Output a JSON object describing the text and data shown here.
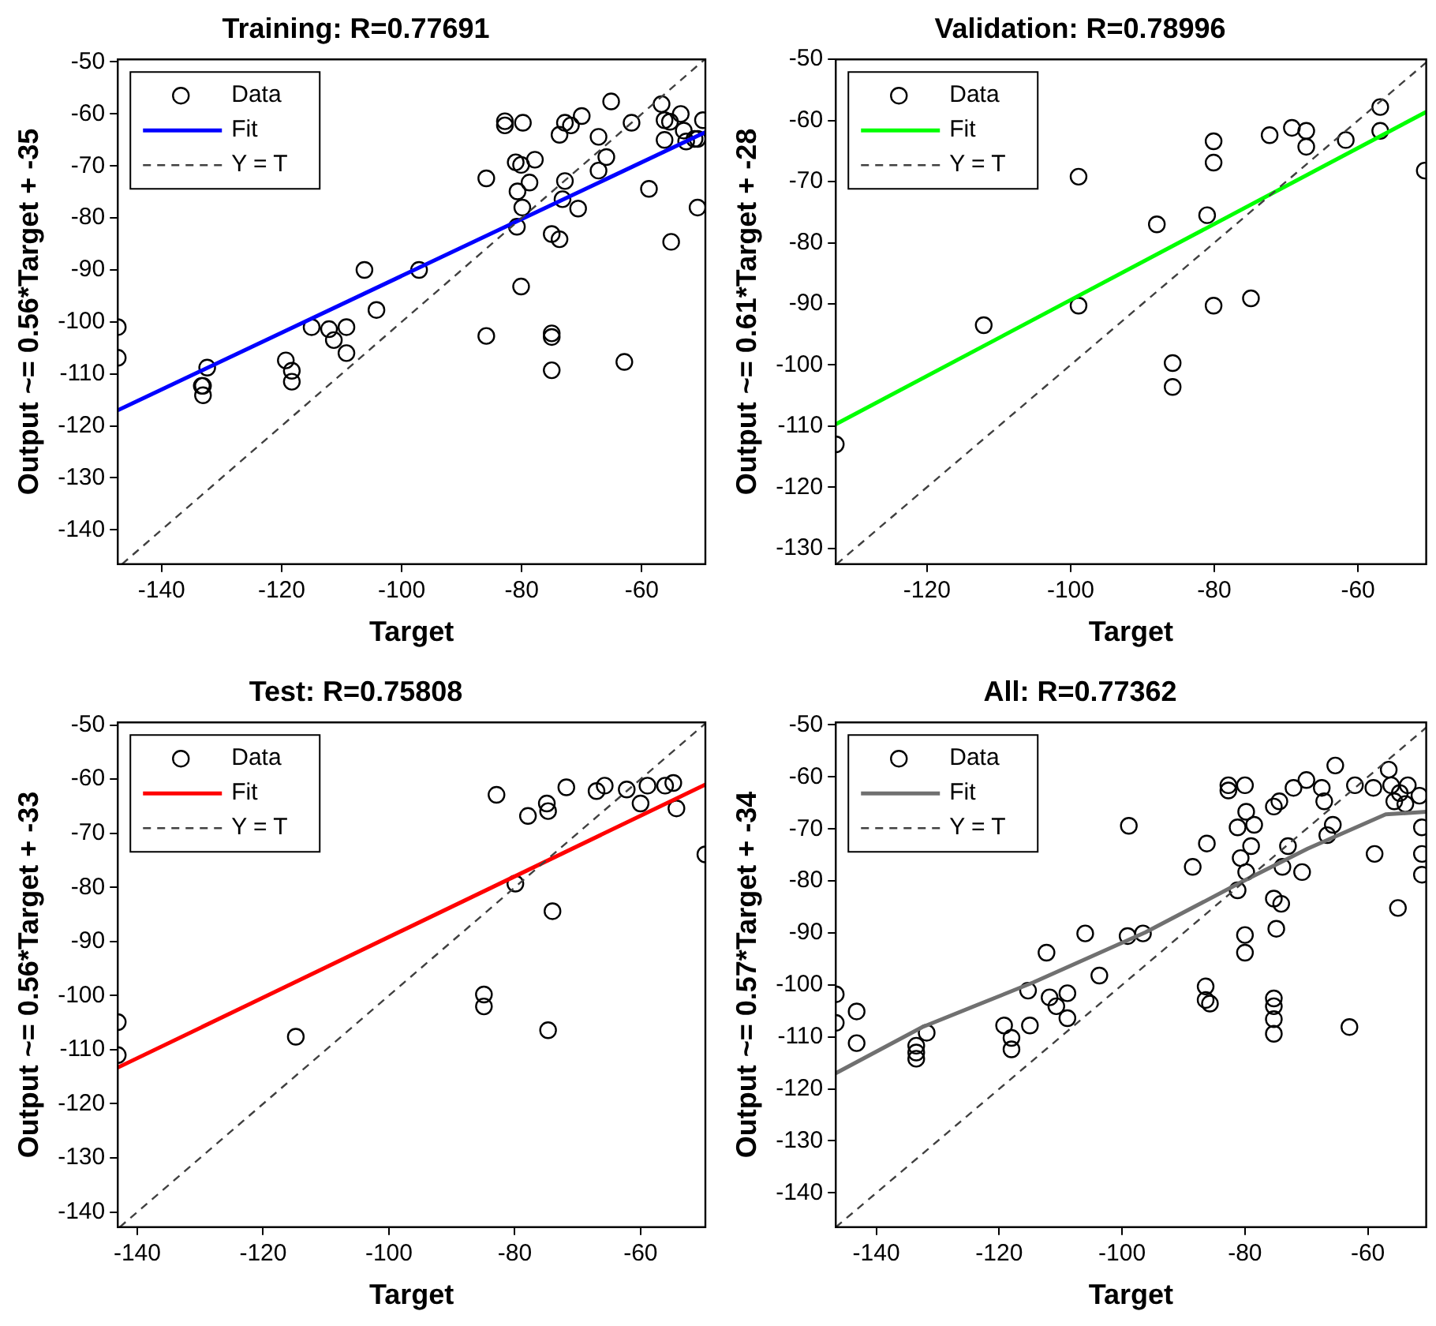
{
  "chart_data": [
    {
      "type": "scatter",
      "title": "Training: R=0.77691",
      "xlabel": "Target",
      "ylabel": "Output ~= 0.56*Target + -35",
      "xlim": [
        -147.3,
        -49.4
      ],
      "ylim": [
        -146.6,
        -49.5
      ],
      "xticks": [
        -140,
        -120,
        -100,
        -80,
        -60
      ],
      "yticks": [
        -140,
        -130,
        -120,
        -110,
        -100,
        -90,
        -80,
        -70,
        -60,
        -50
      ],
      "grid": false,
      "legend": "top left",
      "series": [
        {
          "name": "Data",
          "type": "scatter",
          "marker": "circle",
          "color": "#000000",
          "x": [
            -147.3,
            -147.3,
            -133.1,
            -133.3,
            -133.1,
            -132.4,
            -119.3,
            -118.3,
            -118.3,
            -115.0,
            -112.1,
            -111.3,
            -109.2,
            -109.2,
            -106.2,
            -104.2,
            -97.1,
            -85.9,
            -85.9,
            -82.8,
            -82.8,
            -79.8,
            -81.0,
            -80.1,
            -80.7,
            -79.9,
            -80.8,
            -80.1,
            -77.8,
            -78.7,
            -73.7,
            -72.8,
            -71.8,
            -70.0,
            -72.8,
            -73.2,
            -70.6,
            -75.0,
            -73.7,
            -75.0,
            -75.0,
            -75.0,
            -65.1,
            -67.2,
            -67.2,
            -65.9,
            -61.7,
            -58.8,
            -62.9,
            -56.7,
            -56.2,
            -56.2,
            -55.3,
            -53.5,
            -53.0,
            -52.6,
            -51.2,
            -49.8,
            -50.7,
            -50.7,
            -55.1
          ],
          "values": [
            -101,
            -106.9,
            -112.3,
            -112.3,
            -114.1,
            -108.8,
            -107.4,
            -109.4,
            -111.5,
            -101,
            -101.4,
            -103.5,
            -101,
            -106,
            -90,
            -97.7,
            -90,
            -72.4,
            -102.7,
            -61.4,
            -62.2,
            -61.7,
            -69.3,
            -69.8,
            -74.9,
            -78,
            -81.7,
            -93.2,
            -68.8,
            -73.2,
            -64,
            -61.7,
            -62.2,
            -60.4,
            -72.9,
            -76.4,
            -78.2,
            -83.1,
            -84.1,
            -102.2,
            -102.9,
            -109.3,
            -57.6,
            -64.4,
            -70.9,
            -68.3,
            -61.7,
            -74.4,
            -107.7,
            -58.1,
            -61.2,
            -65,
            -61.5,
            -60,
            -63.2,
            -65.3,
            -64.8,
            -61.2,
            -64.8,
            -78,
            -84.6
          ]
        },
        {
          "name": "Fit",
          "type": "line",
          "color": "#0000ff",
          "x": [
            -147.3,
            -49.4
          ],
          "values": [
            -117,
            -63.5
          ]
        },
        {
          "name": "Y = T",
          "type": "line",
          "line_style": "dashed",
          "color": "#404040",
          "x": [
            -146.6,
            -49.5
          ],
          "values": [
            -146.6,
            -49.5
          ]
        }
      ]
    },
    {
      "type": "scatter",
      "title": "Validation: R=0.78996",
      "xlabel": "Target",
      "ylabel": "Output ~= 0.61*Target + -28",
      "xlim": [
        -132.7,
        -50.5
      ],
      "ylim": [
        -132.6,
        -50
      ],
      "xticks": [
        -120,
        -100,
        -80,
        -60
      ],
      "yticks": [
        -130,
        -120,
        -110,
        -100,
        -90,
        -80,
        -70,
        -60,
        -50
      ],
      "grid": false,
      "legend": "top left",
      "series": [
        {
          "name": "Data",
          "type": "scatter",
          "marker": "circle",
          "color": "#000000",
          "x": [
            -132.7,
            -112.1,
            -98.9,
            -98.9,
            -88.0,
            -85.8,
            -85.8,
            -81.0,
            -80.1,
            -80.1,
            -80.1,
            -74.9,
            -72.3,
            -69.2,
            -67.2,
            -67.2,
            -61.7,
            -56.9,
            -56.9,
            -50.7
          ],
          "values": [
            -113,
            -93.5,
            -90.3,
            -69.2,
            -77,
            -99.7,
            -103.6,
            -75.5,
            -63.4,
            -66.9,
            -90.3,
            -89.1,
            -62.4,
            -61.2,
            -61.7,
            -64.3,
            -63.2,
            -57.8,
            -61.7,
            -68.2
          ]
        },
        {
          "name": "Fit",
          "type": "line",
          "color": "#00ff00",
          "x": [
            -132.7,
            -50.5
          ],
          "values": [
            -109.7,
            -58.6
          ]
        },
        {
          "name": "Y = T",
          "type": "line",
          "line_style": "dashed",
          "color": "#404040",
          "x": [
            -132.6,
            -50.5
          ],
          "values": [
            -132.6,
            -50.5
          ]
        }
      ]
    },
    {
      "type": "scatter",
      "title": "Test: R=0.75808",
      "xlabel": "Target",
      "ylabel": "Output ~= 0.56*Target + -33",
      "xlim": [
        -143.1,
        -49.7
      ],
      "ylim": [
        -142.8,
        -49.5
      ],
      "xticks": [
        -140,
        -120,
        -100,
        -80,
        -60
      ],
      "yticks": [
        -140,
        -130,
        -120,
        -110,
        -100,
        -90,
        -80,
        -70,
        -60,
        -50
      ],
      "grid": false,
      "legend": "top left",
      "series": [
        {
          "name": "Data",
          "type": "scatter",
          "marker": "circle",
          "color": "#000000",
          "x": [
            -143.1,
            -143.1,
            -114.8,
            -84.9,
            -84.9,
            -82.9,
            -79.9,
            -77.9,
            -74.9,
            -74.7,
            -74.0,
            -74.7,
            -71.8,
            -67.0,
            -65.7,
            -62.2,
            -60.0,
            -58.9,
            -56.1,
            -54.8,
            -54.3,
            -49.7
          ],
          "values": [
            -104.9,
            -111,
            -107.6,
            -99.8,
            -102,
            -62.9,
            -79.3,
            -66.8,
            -64.5,
            -65.9,
            -84.4,
            -106.4,
            -61.5,
            -62.2,
            -61.2,
            -61.9,
            -64.5,
            -61.2,
            -61.2,
            -60.7,
            -65.4,
            -73.9
          ]
        },
        {
          "name": "Fit",
          "type": "line",
          "color": "#ff0000",
          "x": [
            -143.1,
            -49.7
          ],
          "values": [
            -113.3,
            -61
          ]
        },
        {
          "name": "Y = T",
          "type": "line",
          "line_style": "dashed",
          "color": "#404040",
          "x": [
            -142.8,
            -49.7
          ],
          "values": [
            -142.8,
            -49.7
          ]
        }
      ]
    },
    {
      "type": "scatter",
      "title": "All: R=0.77362",
      "xlabel": "Target",
      "ylabel": "Output ~= 0.57*Target + -34",
      "xlim": [
        -146.6,
        -50.5
      ],
      "ylim": [
        -146.6,
        -49.5
      ],
      "xticks": [
        -140,
        -120,
        -100,
        -80,
        -60
      ],
      "yticks": [
        -140,
        -130,
        -120,
        -110,
        -100,
        -90,
        -80,
        -70,
        -60,
        -50
      ],
      "grid": false,
      "legend": "top left",
      "series": [
        {
          "name": "Data",
          "type": "scatter",
          "marker": "circle",
          "color": "#000000",
          "x": [
            -146.6,
            -146.6,
            -143.2,
            -143.2,
            -133.5,
            -133.5,
            -133.5,
            -131.8,
            -119.2,
            -118.0,
            -118.0,
            -115.0,
            -115.3,
            -112.3,
            -111.8,
            -110.7,
            -108.9,
            -108.9,
            -106.0,
            -103.7,
            -98.9,
            -99.1,
            -96.6,
            -88.5,
            -86.2,
            -86.4,
            -86.4,
            -85.7,
            -82.7,
            -82.7,
            -80.0,
            -81.2,
            -80.7,
            -81.2,
            -79.8,
            -79.8,
            -80.0,
            -80.0,
            -78.5,
            -79.0,
            -75.3,
            -74.4,
            -72.1,
            -70.0,
            -73.0,
            -73.9,
            -70.7,
            -75.3,
            -74.1,
            -74.9,
            -75.3,
            -75.3,
            -75.3,
            -75.3,
            -67.5,
            -67.1,
            -66.6,
            -65.7,
            -65.3,
            -62.1,
            -63.0,
            -58.9,
            -59.1,
            -56.6,
            -56.2,
            -55.7,
            -54.8,
            -53.9,
            -53.5,
            -55.1,
            -51.6,
            -51.2,
            -51.2,
            -51.2
          ],
          "values": [
            -101.8,
            -107.3,
            -105.1,
            -111.2,
            -111.7,
            -113,
            -114.2,
            -109.2,
            -107.8,
            -110.2,
            -112.4,
            -107.8,
            -101.1,
            -93.8,
            -102.4,
            -104.1,
            -101.6,
            -106.4,
            -90.1,
            -98.2,
            -69.4,
            -90.6,
            -90.1,
            -77.3,
            -72.8,
            -100.3,
            -102.9,
            -103.6,
            -61.6,
            -62.6,
            -61.6,
            -69.7,
            -75.6,
            -81.8,
            -78.3,
            -66.7,
            -90.4,
            -93.8,
            -69.2,
            -73.3,
            -65.7,
            -64.7,
            -62.1,
            -60.6,
            -73.3,
            -77.3,
            -78.3,
            -83.4,
            -84.4,
            -89.2,
            -102.6,
            -104.1,
            -106.6,
            -109.4,
            -62.1,
            -64.7,
            -71.2,
            -69.2,
            -57.8,
            -61.6,
            -108.1,
            -74.8,
            -62.1,
            -58.6,
            -61.6,
            -64.7,
            -63.1,
            -65.2,
            -61.6,
            -85.2,
            -63.6,
            -69.7,
            -74.8,
            -78.8
          ]
        },
        {
          "name": "Fit",
          "type": "line",
          "color": "#707070",
          "x": [
            -146.6,
            -132.5,
            -114.4,
            -96.2,
            -80.7,
            -69.8,
            -57.1,
            -50.5
          ],
          "values": [
            -117,
            -108.1,
            -99.5,
            -89.9,
            -80.3,
            -73.8,
            -67.2,
            -66.7
          ]
        },
        {
          "name": "Y = T",
          "type": "line",
          "line_style": "dashed",
          "color": "#404040",
          "x": [
            -146.6,
            -50.5
          ],
          "values": [
            -146.6,
            -50.5
          ]
        }
      ]
    }
  ]
}
